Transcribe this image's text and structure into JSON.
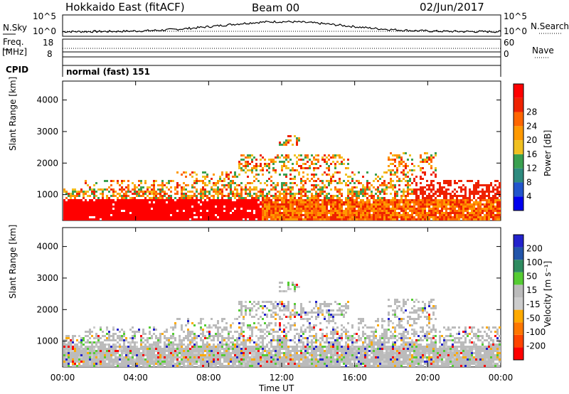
{
  "header": {
    "station": "Hokkaido East (fitACF)",
    "beam": "Beam 00",
    "date": "02/Jun/2017"
  },
  "top_panels": {
    "nsky_label": "N.Sky",
    "nsearch_label": "N.Search",
    "freq_label_1": "Freq.",
    "freq_label_2": "[MHz]",
    "nave_label": "Nave",
    "cpid_label": "CPID",
    "cpid_text": "normal (fast) 151",
    "left_ticks_noise": [
      "10^5",
      "10^0"
    ],
    "right_ticks_noise": [
      "10^5",
      "10^0"
    ],
    "left_ticks_freq": [
      "18",
      "8"
    ],
    "right_ticks_nave": [
      "60",
      "0"
    ]
  },
  "colors": {
    "power_scale": [
      "#0000ee",
      "#2255cc",
      "#2e8b7f",
      "#3aa050",
      "#f0c020",
      "#ff9900",
      "#ff6600",
      "#ee2200",
      "#ff0000"
    ],
    "velocity_scale": [
      "#2222cc",
      "#2255aa",
      "#2e8b60",
      "#55cc33",
      "#bbbbbb",
      "#cccccc",
      "#ffaa00",
      "#ff7700",
      "#ff4400",
      "#ff0000"
    ]
  },
  "chart_data": [
    {
      "type": "heatmap",
      "title": "",
      "xlabel": "",
      "ylabel": "Slant Range [km]",
      "x_ticks": [
        "00:00",
        "04:00",
        "08:00",
        "12:00",
        "16:00",
        "20:00",
        "00:00"
      ],
      "y_ticks": [
        1000,
        2000,
        3000,
        4000
      ],
      "ylim": [
        180,
        4600
      ],
      "colorbar": {
        "label": "Power [dB]",
        "ticks": [
          4,
          8,
          12,
          16,
          20,
          24,
          28
        ]
      }
    },
    {
      "type": "heatmap",
      "title": "",
      "xlabel": "Time UT",
      "ylabel": "Slant Range [km]",
      "x_ticks": [
        "00:00",
        "04:00",
        "08:00",
        "12:00",
        "16:00",
        "20:00",
        "00:00"
      ],
      "y_ticks": [
        1000,
        2000,
        3000,
        4000
      ],
      "ylim": [
        180,
        4600
      ],
      "colorbar": {
        "label": "Velocity [m s⁻¹]",
        "ticks": [
          200,
          100,
          50,
          15,
          -15,
          -50,
          -100,
          -200
        ]
      }
    }
  ]
}
